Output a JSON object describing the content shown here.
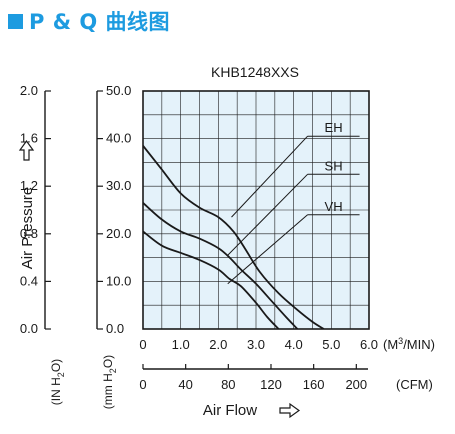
{
  "header": {
    "title": "P & Q 曲线图"
  },
  "chart_data": {
    "type": "line",
    "title": "KHB1248XXS",
    "xlabel": "Air Flow",
    "ylabel": "Air Pressure",
    "x_unit": "(M3/MIN)",
    "x_unit_main": "(M",
    "x_unit_sup": "3",
    "x_unit_tail": "/MIN)",
    "x2_unit": "(CFM)",
    "y_left_unit_parts": [
      "(IN H",
      "2",
      "O)"
    ],
    "y_right_unit_parts": [
      "(mm H",
      "2",
      "O)"
    ],
    "xlim": [
      0,
      6
    ],
    "ylim": [
      0,
      50
    ],
    "x_ticks": [
      "0",
      "1.0",
      "2.0",
      "3.0",
      "4.0",
      "5.0",
      "6.0"
    ],
    "x2_ticks": [
      "0",
      "40",
      "80",
      "120",
      "160",
      "200"
    ],
    "x2_tick_values": [
      0,
      40,
      80,
      120,
      160,
      200
    ],
    "y_ticks_mm": [
      "0.0",
      "10.0",
      "20.0",
      "30.0",
      "40.0",
      "50.0"
    ],
    "y_ticks_in": [
      "0.0",
      "0.4",
      "0.8",
      "1.2",
      "1.6",
      "2.0"
    ],
    "grid": true,
    "series": [
      {
        "name": "EH",
        "x": [
          0,
          0.5,
          1.0,
          1.5,
          2.0,
          2.4,
          2.7,
          3.1,
          3.6,
          4.1,
          4.5,
          4.8
        ],
        "y": [
          38.5,
          33.5,
          28.5,
          25.5,
          23.5,
          20.5,
          17,
          12,
          7.5,
          4,
          1.5,
          0
        ]
      },
      {
        "name": "SH",
        "x": [
          0,
          0.5,
          1.0,
          1.5,
          2.0,
          2.3,
          2.6,
          3.0,
          3.4,
          3.8,
          4.1
        ],
        "y": [
          26.5,
          23,
          20.5,
          19,
          17,
          15,
          12.5,
          9.5,
          6,
          2.5,
          0
        ]
      },
      {
        "name": "VH",
        "x": [
          0,
          0.5,
          1.0,
          1.5,
          2.0,
          2.3,
          2.6,
          3.0,
          3.3,
          3.6
        ],
        "y": [
          20.5,
          17.5,
          16,
          14.5,
          12.5,
          10.5,
          9,
          5.5,
          2.5,
          0
        ]
      }
    ],
    "annotations": [
      {
        "label": "EH",
        "x": 4.9,
        "y": 40.5,
        "point": [
          2.35,
          23.5
        ]
      },
      {
        "label": "SH",
        "x": 4.9,
        "y": 32.5,
        "point": [
          2.25,
          15.5
        ]
      },
      {
        "label": "VH",
        "x": 4.9,
        "y": 24.0,
        "point": [
          2.25,
          9.5
        ]
      }
    ]
  }
}
